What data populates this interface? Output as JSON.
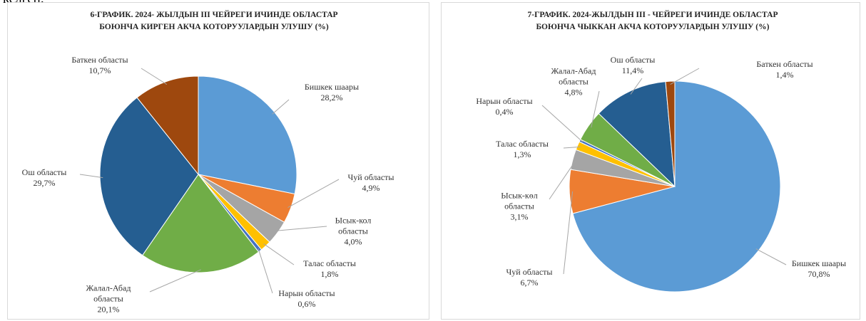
{
  "header_fragment": "келген.",
  "chart_data": [
    {
      "type": "pie",
      "title": "6-ГРАФИК. 2024- ЖЫЛДЫН III ЧЕЙРЕГИ ИЧИНДЕ ОБЛАСТАР БОЮНЧА КИРГЕН АКЧА КОТОРУУЛАРДЫН УЛУШУ (%)",
      "categories": [
        "Бишкек шаары",
        "Чуй областы",
        "Ысык-кол областы",
        "Талас областы",
        "Нарын областы",
        "Жалал-Абад областы",
        "Ош областы",
        "Баткен областы"
      ],
      "values": [
        28.2,
        4.9,
        4.0,
        1.8,
        0.6,
        20.1,
        29.7,
        10.7
      ],
      "value_labels": [
        "28,2%",
        "4,9%",
        "4,0%",
        "1,8%",
        "0,6%",
        "20,1%",
        "29,7%",
        "10,7%"
      ],
      "colors": [
        "#5b9bd5",
        "#ed7d31",
        "#a5a5a5",
        "#ffc000",
        "#4472c4",
        "#70ad47",
        "#255e91",
        "#9e480e"
      ]
    },
    {
      "type": "pie",
      "title": "7-ГРАФИК. 2024-ЖЫЛДЫН III - ЧЕЙРЕГИ ИЧИНДЕ ОБЛАСТАР БОЮНЧА ЧЫККАН АКЧА КОТОРУУЛАРДЫН УЛУШУ (%)",
      "categories": [
        "Бишкек шаары",
        "Чуй областы",
        "Ысык-көл областы",
        "Талас областы",
        "Нарын областы",
        "Жалал-Абад областы",
        "Ош областы",
        "Баткен областы"
      ],
      "values": [
        70.8,
        6.7,
        3.1,
        1.3,
        0.4,
        4.8,
        11.4,
        1.4
      ],
      "value_labels": [
        "70,8%",
        "6,7%",
        "3,1%",
        "1,3%",
        "0,4%",
        "4,8%",
        "11,4%",
        "1,4%"
      ],
      "colors": [
        "#5b9bd5",
        "#ed7d31",
        "#a5a5a5",
        "#ffc000",
        "#4472c4",
        "#70ad47",
        "#255e91",
        "#9e480e"
      ]
    }
  ]
}
